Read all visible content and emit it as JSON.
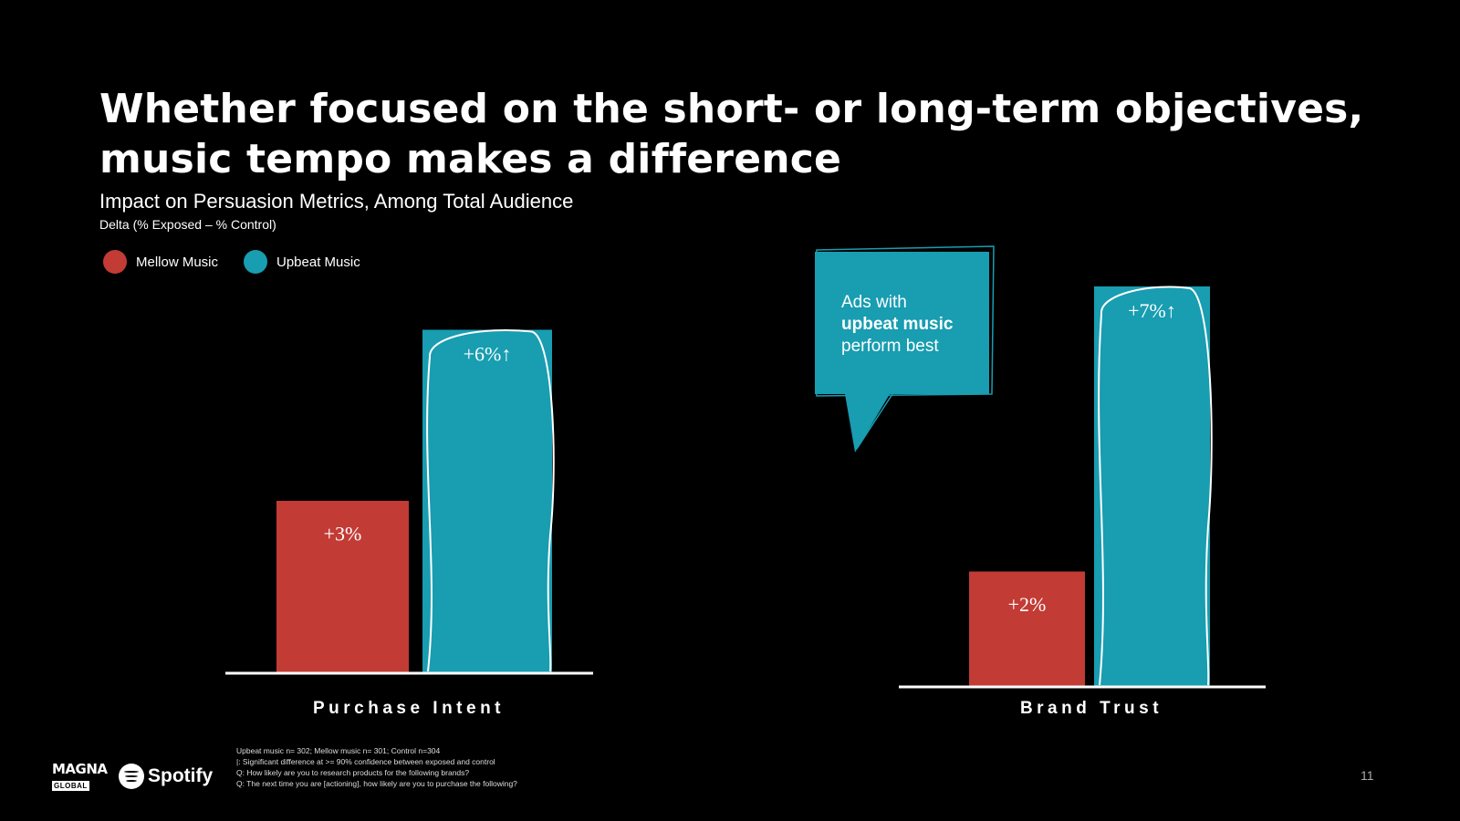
{
  "title_line1": "Whether focused on the short- or long-term objectives,",
  "title_line2": "music tempo makes a difference",
  "legend": [
    {
      "label": "Mellow Music",
      "color": "#c23b35"
    },
    {
      "label": "Upbeat Music",
      "color": "#189db1"
    }
  ],
  "callout": {
    "line1": "Ads with",
    "line2": "upbeat music",
    "line3": "perform best"
  },
  "footnotes": [
    "Upbeat music n= 302; Mellow music n= 301; Control n=304",
    "|: Significant difference at >= 90% confidence between exposed and control",
    "Q: How likely are you to research products for the following brands?",
    "Q: The next time you are [actioning], how likely are you to purchase the following?"
  ],
  "page_number": "11",
  "logos": {
    "magna_top": "MAGNA",
    "magna_bottom": "GLOBAL",
    "spotify": "Spotify"
  },
  "chart_data": {
    "type": "bar",
    "title": "Impact on Persuasion Metrics, Among Total Audience",
    "subtitle": "Delta (% Exposed – % Control)",
    "categories": [
      "Purchase Intent",
      "Brand Trust"
    ],
    "series": [
      {
        "name": "Mellow Music",
        "color": "#c23b35",
        "values": [
          3,
          2
        ],
        "labels": [
          "+3%",
          "+2%"
        ]
      },
      {
        "name": "Upbeat Music",
        "color": "#189db1",
        "values": [
          6,
          7
        ],
        "labels": [
          "+6%↑",
          "+7%↑"
        ],
        "significant": [
          true,
          true
        ]
      }
    ]
  }
}
